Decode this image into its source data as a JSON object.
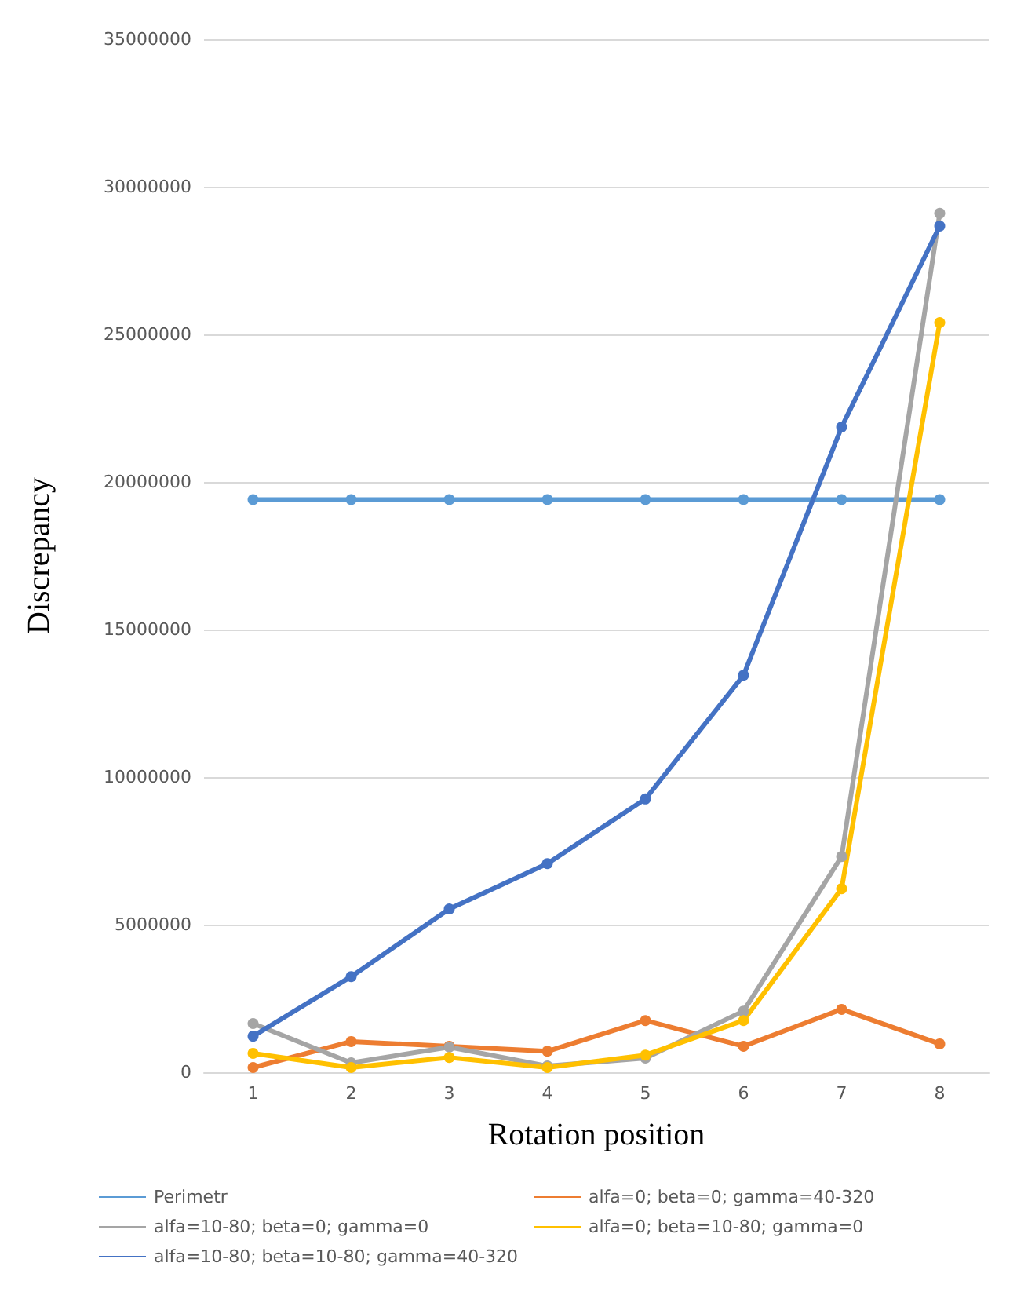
{
  "chart_data": {
    "type": "line",
    "xlabel": "Rotation position",
    "ylabel": "Discrepancy",
    "categories": [
      "1",
      "2",
      "3",
      "4",
      "5",
      "6",
      "7",
      "8"
    ],
    "series": [
      {
        "name": "Perimetr",
        "color": "#5b9bd5",
        "values": [
          19400000,
          19400000,
          19400000,
          19400000,
          19400000,
          19400000,
          19400000,
          19400000
        ]
      },
      {
        "name": "alfa=0; beta=0; gamma=40-320",
        "color": "#ed7d31",
        "values": [
          160000,
          1040000,
          880000,
          710000,
          1750000,
          880000,
          2130000,
          960000
        ]
      },
      {
        "name": "alfa=10-80; beta=0; gamma=0",
        "color": "#a5a5a5",
        "values": [
          1650000,
          320000,
          850000,
          210000,
          480000,
          2070000,
          7310000,
          29100000
        ]
      },
      {
        "name": "alfa=0; beta=10-80; gamma=0",
        "color": "#ffc000",
        "values": [
          640000,
          160000,
          500000,
          160000,
          580000,
          1750000,
          6220000,
          25400000
        ]
      },
      {
        "name": "alfa=10-80; beta=10-80; gamma=40-320",
        "color": "#4472c4",
        "values": [
          1220000,
          3240000,
          5530000,
          7070000,
          9260000,
          13450000,
          21860000,
          28670000
        ]
      }
    ],
    "ylim": [
      0,
      35000000
    ],
    "yticks": [
      0,
      5000000,
      10000000,
      15000000,
      20000000,
      25000000,
      30000000,
      35000000
    ],
    "grid": "y",
    "legend": "bottom",
    "marker": "circle",
    "line_style": "solid"
  }
}
